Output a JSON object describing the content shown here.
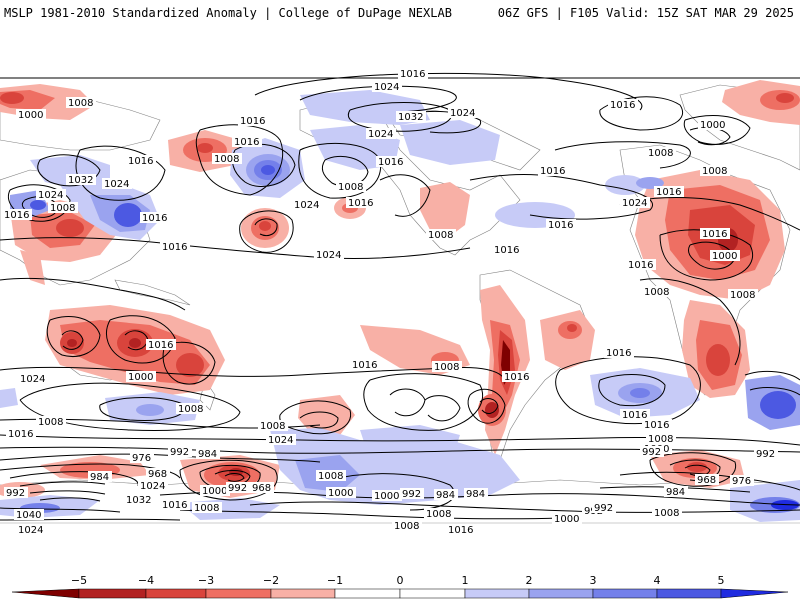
{
  "header": {
    "title": "MSLP 1981-2010 Standardized Anomaly | College of DuPage NEXLAB",
    "run_info": "06Z GFS | F105 Valid: 15Z SAT MAR 29 2025"
  },
  "colors": {
    "neg5": "#7f0000",
    "neg4": "#b22222",
    "neg3": "#d9443c",
    "neg2": "#ee6f63",
    "neg1": "#f8b0a6",
    "zero": "#ffffff",
    "pos1": "#c7cbf7",
    "pos2": "#9aa3ef",
    "pos3": "#7480ea",
    "pos4": "#4c59e2",
    "pos5": "#1f2be0"
  },
  "colorbar": {
    "ticks": [
      "−5",
      "−4",
      "−3",
      "−2",
      "−1",
      "0",
      "1",
      "2",
      "3",
      "4",
      "5"
    ]
  },
  "isobars": {
    "labels": [
      {
        "id": "n1",
        "text": "1016"
      },
      {
        "id": "n2",
        "text": "1024"
      },
      {
        "id": "n3",
        "text": "1008"
      },
      {
        "id": "n4",
        "text": "1000"
      },
      {
        "id": "n5",
        "text": "1016"
      },
      {
        "id": "n6",
        "text": "1032"
      },
      {
        "id": "n7",
        "text": "1024"
      },
      {
        "id": "n8",
        "text": "1016"
      },
      {
        "id": "n9",
        "text": "1000"
      },
      {
        "id": "n10",
        "text": "1024"
      },
      {
        "id": "n11",
        "text": "1016"
      },
      {
        "id": "n12",
        "text": "1008"
      },
      {
        "id": "n13",
        "text": "1016"
      },
      {
        "id": "n14",
        "text": "1032"
      },
      {
        "id": "n15",
        "text": "1024"
      },
      {
        "id": "n16",
        "text": "1008"
      },
      {
        "id": "n17",
        "text": "1016"
      },
      {
        "id": "n18",
        "text": "1024"
      },
      {
        "id": "n19",
        "text": "1016"
      },
      {
        "id": "n20",
        "text": "1008"
      },
      {
        "id": "n21",
        "text": "1016"
      },
      {
        "id": "n22",
        "text": "1008"
      },
      {
        "id": "n23",
        "text": "1024"
      },
      {
        "id": "n24",
        "text": "1016"
      },
      {
        "id": "n25",
        "text": "1008"
      },
      {
        "id": "n26",
        "text": "1016"
      },
      {
        "id": "n27",
        "text": "1024"
      },
      {
        "id": "n28",
        "text": "1008"
      },
      {
        "id": "n29",
        "text": "1016"
      },
      {
        "id": "n30",
        "text": "1016"
      },
      {
        "id": "n31",
        "text": "1024"
      },
      {
        "id": "n32",
        "text": "1016"
      },
      {
        "id": "n33",
        "text": "1016"
      },
      {
        "id": "n34",
        "text": "1008"
      },
      {
        "id": "n35",
        "text": "1016"
      },
      {
        "id": "n36",
        "text": "1008"
      },
      {
        "id": "n37",
        "text": "1016"
      },
      {
        "id": "n38",
        "text": "1000"
      },
      {
        "id": "s1",
        "text": "1016"
      },
      {
        "id": "s2",
        "text": "1016"
      },
      {
        "id": "s3",
        "text": "1008"
      },
      {
        "id": "s4",
        "text": "1016"
      },
      {
        "id": "s5",
        "text": "1024"
      },
      {
        "id": "s6",
        "text": "1008"
      },
      {
        "id": "s7",
        "text": "1000"
      },
      {
        "id": "s8",
        "text": "1016"
      },
      {
        "id": "s9",
        "text": "1008"
      },
      {
        "id": "s10",
        "text": "1016"
      },
      {
        "id": "s11",
        "text": "1016"
      },
      {
        "id": "s12",
        "text": "1008"
      },
      {
        "id": "s13",
        "text": "1024"
      },
      {
        "id": "s14",
        "text": "1016"
      },
      {
        "id": "s15",
        "text": "1008"
      },
      {
        "id": "s16",
        "text": "1000"
      },
      {
        "id": "s17",
        "text": "992"
      },
      {
        "id": "s18",
        "text": "984"
      },
      {
        "id": "s19",
        "text": "992"
      },
      {
        "id": "s20",
        "text": "976"
      },
      {
        "id": "s21",
        "text": "968"
      },
      {
        "id": "s22",
        "text": "984"
      },
      {
        "id": "s23",
        "text": "1024"
      },
      {
        "id": "s24",
        "text": "1032"
      },
      {
        "id": "s25",
        "text": "992"
      },
      {
        "id": "s26",
        "text": "1040"
      },
      {
        "id": "s27",
        "text": "1024"
      },
      {
        "id": "s28",
        "text": "1016"
      },
      {
        "id": "s29",
        "text": "1008"
      },
      {
        "id": "s30",
        "text": "1000"
      },
      {
        "id": "s31",
        "text": "992"
      },
      {
        "id": "s32",
        "text": "968"
      },
      {
        "id": "s33",
        "text": "1008"
      },
      {
        "id": "s34",
        "text": "1000"
      },
      {
        "id": "s35",
        "text": "1000"
      },
      {
        "id": "s36",
        "text": "992"
      },
      {
        "id": "s37",
        "text": "992"
      },
      {
        "id": "s38",
        "text": "984"
      },
      {
        "id": "s39",
        "text": "1008"
      },
      {
        "id": "s40",
        "text": "1008"
      },
      {
        "id": "s41",
        "text": "1016"
      },
      {
        "id": "s42",
        "text": "1000"
      },
      {
        "id": "s43",
        "text": "992"
      },
      {
        "id": "s44",
        "text": "1008"
      },
      {
        "id": "s45",
        "text": "984"
      },
      {
        "id": "s46",
        "text": "968"
      },
      {
        "id": "s47",
        "text": "976"
      },
      {
        "id": "s48",
        "text": "992"
      },
      {
        "id": "s49",
        "text": "984"
      }
    ]
  }
}
